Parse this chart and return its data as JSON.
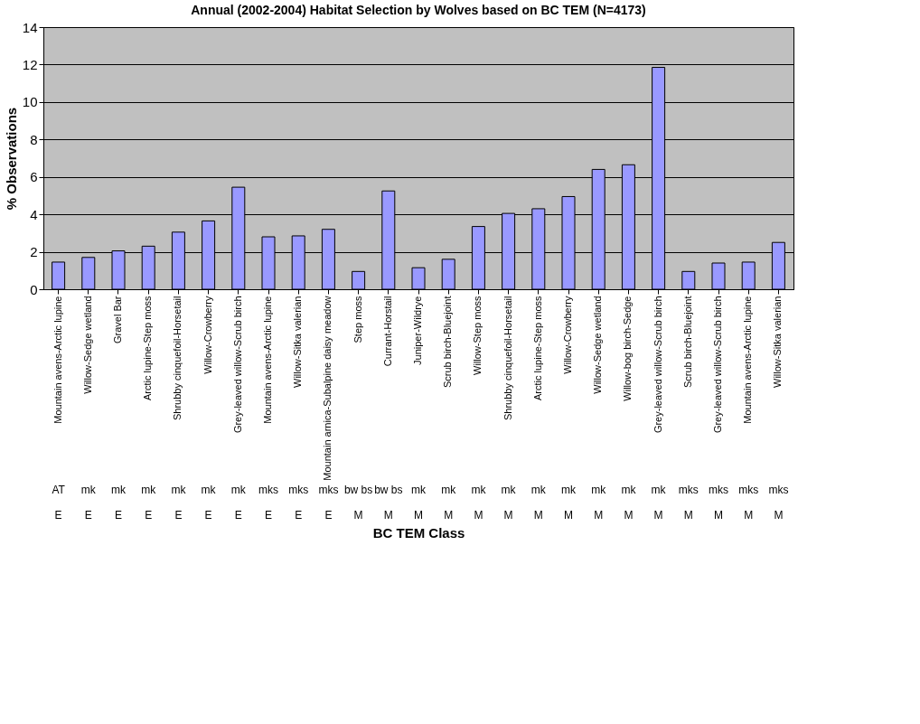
{
  "chart_data": {
    "type": "bar",
    "title": "Annual (2002-2004) Habitat Selection by Wolves based on BC TEM (N=4173)",
    "xlabel": "BC TEM Class",
    "ylabel": "% Observations",
    "categories": [
      "Mountain avens-Arctic lupine",
      "Willow-Sedge wetland",
      "Gravel Bar",
      "Arctic lupine-Step moss",
      "Shrubby cinquefoil-Horsetail",
      "Willow-Crowberry",
      "Grey-leaved willow-Scrub birch",
      "Mountain avens-Arctic lupine",
      "Willow-Sitka valerian",
      "Mountain arnica-Subalpine daisy meadow",
      "Step moss",
      "Currant-Horstail",
      "Juniper-Wildrye",
      "Scrub birch-Bluejoint",
      "Willow-Step moss",
      "Shrubby cinquefoil-Horsetail",
      "Arctic lupine-Step moss",
      "Willow-Crowberry",
      "Willow-Sedge wetland",
      "Willow-bog birch-Sedge",
      "Grey-leaved willow-Scrub birch",
      "Scrub birch-Bluejoint",
      "Grey-leaved willow-Scrub birch",
      "Mountain avens-Arctic lupine",
      "Willow-Sitka valerian"
    ],
    "values": [
      1.45,
      1.7,
      2.05,
      2.3,
      3.05,
      3.65,
      5.45,
      2.8,
      2.85,
      3.2,
      0.95,
      5.25,
      1.15,
      1.6,
      3.35,
      4.05,
      4.3,
      4.95,
      6.4,
      6.65,
      11.85,
      0.95,
      1.4,
      1.45,
      2.5
    ],
    "color": "#9999ff",
    "ylim": [
      0,
      14
    ],
    "yticks": [
      0,
      2,
      4,
      6,
      8,
      10,
      12,
      14
    ],
    "grid": "y",
    "annotations": [
      "AT",
      "mk",
      "mk",
      "mk",
      "mk",
      "mk",
      "mk",
      "mks",
      "mks",
      "mks",
      "bw bs",
      "bw bs",
      "mk",
      "mk",
      "mk",
      "mk",
      "mk",
      "mk",
      "mk",
      "mk",
      "mk",
      "mks",
      "mks",
      "mks",
      "mks",
      "E",
      "E",
      "E",
      "E",
      "E",
      "E",
      "E",
      "E",
      "E",
      "E",
      "M",
      "M",
      "M",
      "M",
      "M",
      "M",
      "M",
      "M",
      "M",
      "M",
      "M",
      "M",
      "M",
      "M",
      "M"
    ]
  }
}
